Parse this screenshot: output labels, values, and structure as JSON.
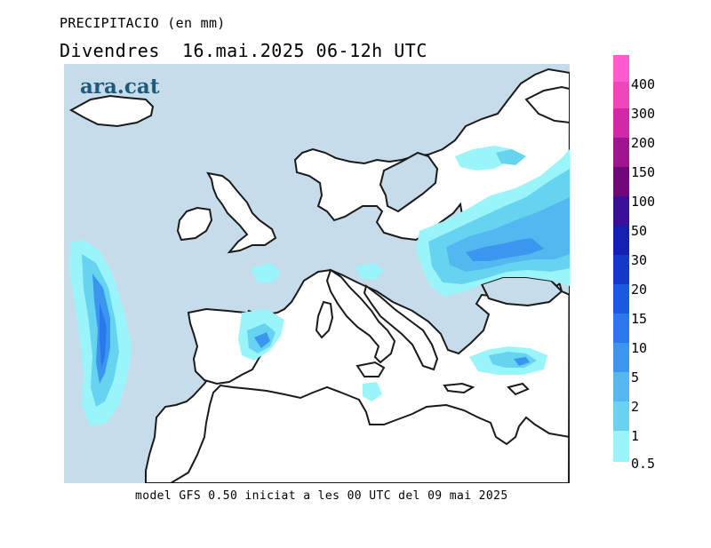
{
  "header": {
    "variable": "PRECIPITACIO (en mm)",
    "date_line": "Divendres  16.mai.2025 06-12h UTC"
  },
  "footer": {
    "model_note": "model GFS 0.50 iniciat a les 00 UTC del 09 mai 2025"
  },
  "logo": {
    "text": "ara.cat"
  },
  "colors": {
    "sea": "#c6dceb",
    "land": "#ffffff",
    "coast": "#1a1a1a",
    "logo": "#1e5a7a"
  },
  "legend": {
    "levels": [
      {
        "label": "0.5",
        "color": "#99f5fa"
      },
      {
        "label": "1",
        "color": "#7eeaf2"
      },
      {
        "label": "2",
        "color": "#66d4f0"
      },
      {
        "label": "5",
        "color": "#53b8ef"
      },
      {
        "label": "10",
        "color": "#3a96ee"
      },
      {
        "label": "15",
        "color": "#2a78ee"
      },
      {
        "label": "20",
        "color": "#1a5ae0"
      },
      {
        "label": "30",
        "color": "#1438c8"
      },
      {
        "label": "50",
        "color": "#1420b0"
      },
      {
        "label": "100",
        "color": "#3a1098"
      },
      {
        "label": "150",
        "color": "#70087a"
      },
      {
        "label": "200",
        "color": "#a01490"
      },
      {
        "label": "300",
        "color": "#d02aa8"
      },
      {
        "label": "400",
        "color": "#f046bc"
      },
      {
        "label": "",
        "color": "#ff5ad0"
      }
    ]
  }
}
